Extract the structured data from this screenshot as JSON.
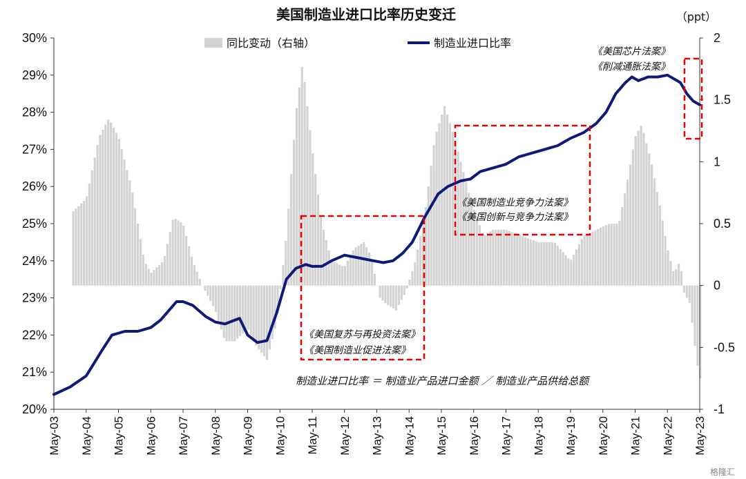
{
  "chart_data": {
    "type": "bar+line",
    "title": "美国制造业进口比率历史变迁",
    "right_axis_unit": "（ppt）",
    "left_axis": {
      "ylim": [
        0.2,
        0.3
      ],
      "ticks": [
        "20%",
        "21%",
        "22%",
        "23%",
        "24%",
        "25%",
        "26%",
        "27%",
        "28%",
        "29%",
        "30%"
      ]
    },
    "right_axis": {
      "ylim": [
        -1,
        2
      ],
      "ticks": [
        "-1",
        "-0.5",
        "0",
        "0.5",
        "1",
        "1.5",
        "2"
      ]
    },
    "x_ticks": [
      "May-03",
      "May-04",
      "May-05",
      "May-06",
      "May-07",
      "May-08",
      "May-09",
      "May-10",
      "May-11",
      "May-12",
      "May-13",
      "May-14",
      "May-15",
      "May-16",
      "May-17",
      "May-18",
      "May-19",
      "May-20",
      "May-21",
      "May-22",
      "May-23"
    ],
    "legend": {
      "bar_label": "同比变动（右轴）",
      "line_label": "制造业进口比率",
      "placement": "top"
    },
    "colors": {
      "bar": "#d3d3d3",
      "line": "#0d1a7a",
      "box": "#e60000"
    },
    "series": [
      {
        "name": "制造业进口比率",
        "axis": "left",
        "x_year": [
          2003.0,
          2003.5,
          2004.0,
          2004.5,
          2004.8,
          2005.2,
          2005.6,
          2006.0,
          2006.3,
          2006.8,
          2007.0,
          2007.3,
          2007.7,
          2008.0,
          2008.3,
          2008.6,
          2008.75,
          2009.0,
          2009.3,
          2009.6,
          2009.9,
          2010.2,
          2010.5,
          2010.8,
          2011.0,
          2011.3,
          2011.6,
          2012.0,
          2012.3,
          2012.6,
          2012.9,
          2013.2,
          2013.5,
          2013.8,
          2014.1,
          2014.5,
          2014.9,
          2015.2,
          2015.6,
          2015.9,
          2016.2,
          2016.6,
          2017.0,
          2017.4,
          2017.8,
          2018.2,
          2018.6,
          2019.0,
          2019.4,
          2019.8,
          2020.1,
          2020.4,
          2020.7,
          2020.9,
          2021.1,
          2021.4,
          2021.7,
          2022.0,
          2022.4,
          2022.6,
          2022.8,
          2023.0
        ],
        "values": [
          20.4,
          20.6,
          20.9,
          21.6,
          22.0,
          22.1,
          22.1,
          22.2,
          22.4,
          22.9,
          22.9,
          22.8,
          22.5,
          22.35,
          22.3,
          22.4,
          22.45,
          22.0,
          21.8,
          21.85,
          22.6,
          23.5,
          23.8,
          23.9,
          23.85,
          23.85,
          24.0,
          24.15,
          24.1,
          24.05,
          24.0,
          23.95,
          24.0,
          24.2,
          24.5,
          25.2,
          25.8,
          26.0,
          26.15,
          26.2,
          26.4,
          26.5,
          26.6,
          26.8,
          26.9,
          27.0,
          27.1,
          27.3,
          27.45,
          27.7,
          28.0,
          28.5,
          28.8,
          28.95,
          28.85,
          28.95,
          28.95,
          29.0,
          28.8,
          28.5,
          28.3,
          28.2
        ]
      },
      {
        "name": "同比变动（右轴）",
        "axis": "right",
        "x_year": [
          2003.6,
          2004.0,
          2004.4,
          2004.7,
          2005.0,
          2005.4,
          2005.8,
          2006.0,
          2006.4,
          2006.7,
          2007.0,
          2007.3,
          2007.6,
          2008.0,
          2008.3,
          2008.6,
          2009.0,
          2009.3,
          2009.6,
          2009.9,
          2010.2,
          2010.5,
          2010.7,
          2011.0,
          2011.3,
          2011.6,
          2012.0,
          2012.3,
          2012.6,
          2012.8,
          2013.1,
          2013.3,
          2013.6,
          2013.9,
          2014.2,
          2014.5,
          2014.8,
          2015.1,
          2015.4,
          2015.6,
          2015.9,
          2016.3,
          2016.6,
          2017.0,
          2017.5,
          2018.0,
          2018.5,
          2019.0,
          2019.4,
          2019.8,
          2020.2,
          2020.5,
          2020.8,
          2021.0,
          2021.2,
          2021.5,
          2021.8,
          2022.0,
          2022.2,
          2022.4,
          2022.5,
          2022.7,
          2022.9,
          2023.0
        ],
        "values": [
          0.6,
          0.7,
          1.2,
          1.35,
          1.2,
          0.8,
          0.2,
          0.1,
          0.2,
          0.55,
          0.5,
          0.2,
          0.0,
          -0.2,
          -0.45,
          -0.45,
          -0.35,
          -0.5,
          -0.6,
          -0.3,
          0.4,
          1.4,
          1.8,
          1.1,
          0.5,
          0.2,
          0.15,
          0.3,
          0.35,
          0.25,
          -0.1,
          -0.15,
          -0.2,
          -0.05,
          0.2,
          0.6,
          1.2,
          1.45,
          1.2,
          1.0,
          0.7,
          0.4,
          0.45,
          0.45,
          0.4,
          0.35,
          0.35,
          0.2,
          0.4,
          0.45,
          0.5,
          0.5,
          0.9,
          1.2,
          1.3,
          1.0,
          0.6,
          0.3,
          0.1,
          0.2,
          -0.05,
          -0.15,
          -0.6,
          -0.75
        ]
      }
    ],
    "annotations": [
      {
        "lines": [
          "《美国复苏与再投资法案》",
          "《美国制造业促进法案》"
        ]
      },
      {
        "lines": [
          "《美国制造业竞争力法案》",
          "《美国创新与竞争力法案》"
        ]
      },
      {
        "lines": [
          "《美国芯片法案》",
          "《削减通胀法案》"
        ]
      }
    ],
    "formula": "制造业进口比率 ＝ 制造业产品进口金额 ／ 制造业产品供给总额"
  },
  "watermark": "格隆汇"
}
